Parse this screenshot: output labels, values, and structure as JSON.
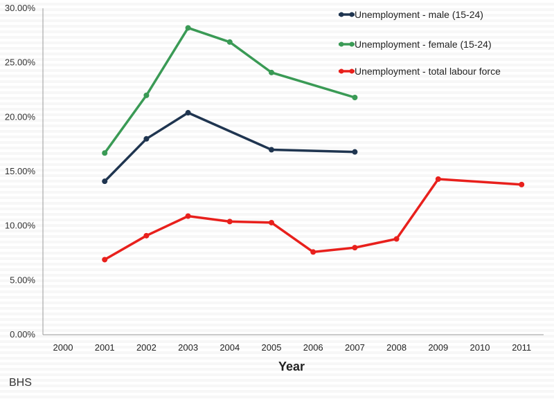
{
  "chart_data": {
    "type": "line",
    "title": "",
    "xlabel": "Year",
    "ylabel": "",
    "x": [
      "2000",
      "2001",
      "2002",
      "2003",
      "2004",
      "2005",
      "2006",
      "2007",
      "2008",
      "2009",
      "2010",
      "2011"
    ],
    "y_ticks": [
      "0.00%",
      "5.00%",
      "10.00%",
      "15.00%",
      "20.00%",
      "25.00%",
      "30.00%"
    ],
    "ylim": [
      0,
      30
    ],
    "grid": false,
    "legend": "top-right",
    "series": [
      {
        "name": "Unemployment - male (15-24)",
        "color": "#1f3550",
        "points": [
          {
            "x": "2001",
            "y": 14.1
          },
          {
            "x": "2002",
            "y": 18.0
          },
          {
            "x": "2003",
            "y": 20.4
          },
          {
            "x": "2005",
            "y": 17.0
          },
          {
            "x": "2007",
            "y": 16.8
          }
        ]
      },
      {
        "name": "Unemployment - female (15-24)",
        "color": "#3a9a55",
        "points": [
          {
            "x": "2001",
            "y": 16.7
          },
          {
            "x": "2002",
            "y": 22.0
          },
          {
            "x": "2003",
            "y": 28.2
          },
          {
            "x": "2004",
            "y": 26.9
          },
          {
            "x": "2005",
            "y": 24.1
          },
          {
            "x": "2007",
            "y": 21.8
          }
        ]
      },
      {
        "name": "Unemployment - total labour force",
        "color": "#e8201c",
        "points": [
          {
            "x": "2001",
            "y": 6.9
          },
          {
            "x": "2002",
            "y": 9.1
          },
          {
            "x": "2003",
            "y": 10.9
          },
          {
            "x": "2004",
            "y": 10.4
          },
          {
            "x": "2005",
            "y": 10.3
          },
          {
            "x": "2006",
            "y": 7.6
          },
          {
            "x": "2007",
            "y": 8.0
          },
          {
            "x": "2008",
            "y": 8.8
          },
          {
            "x": "2009",
            "y": 14.3
          },
          {
            "x": "2011",
            "y": 13.8
          }
        ]
      }
    ]
  },
  "footnote": "BHS"
}
